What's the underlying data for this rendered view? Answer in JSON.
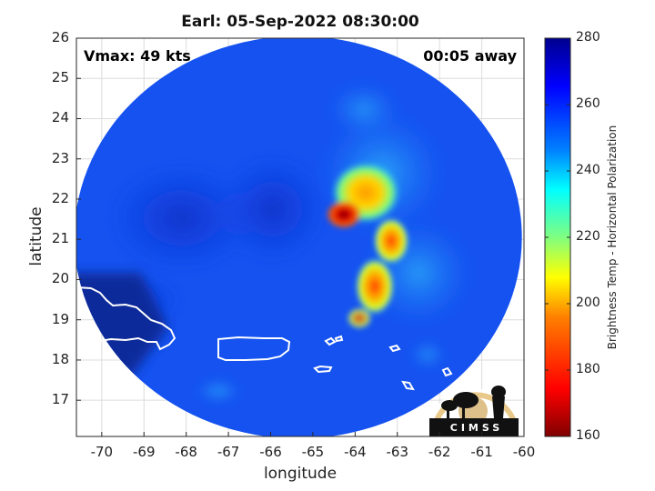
{
  "figure": {
    "title": "Earl: 05-Sep-2022 08:30:00",
    "vmax_label": "Vmax: 49 kts",
    "time_label": "00:05 away",
    "logo_text": "CIMSS"
  },
  "chart_data": {
    "type": "heatmap",
    "xlabel": "longitude",
    "ylabel": "latitude",
    "xlim": [
      -70.6,
      -60
    ],
    "ylim": [
      16.1,
      26
    ],
    "xticks": [
      "-70",
      "-69",
      "-68",
      "-67",
      "-66",
      "-65",
      "-64",
      "-63",
      "-62",
      "-61",
      "-60"
    ],
    "yticks": [
      "17",
      "18",
      "19",
      "20",
      "21",
      "22",
      "23",
      "24",
      "25",
      "26"
    ],
    "grid": true,
    "colorbar": {
      "label": "Brightness Temp - Horizontal Polarization",
      "range": [
        160,
        280
      ],
      "ticks": [
        "160",
        "180",
        "200",
        "220",
        "240",
        "260",
        "280"
      ],
      "colormap": "jet"
    },
    "swath": {
      "center_lon": -65.35,
      "center_lat": 21.05,
      "radius_deg_lon": 5.3,
      "radius_deg_lat": 5.0
    },
    "features": [
      {
        "name": "storm core",
        "lon": -64.3,
        "lat": 21.5,
        "value": 170
      },
      {
        "name": "northern convection",
        "lon": -63.9,
        "lat": 22.3,
        "value": 205
      },
      {
        "name": "rainband",
        "lon": -63.8,
        "lat": 20.0,
        "value": 195
      },
      {
        "name": "cold land region",
        "lon": -69.5,
        "lat": 19.0,
        "value": 270
      }
    ]
  }
}
